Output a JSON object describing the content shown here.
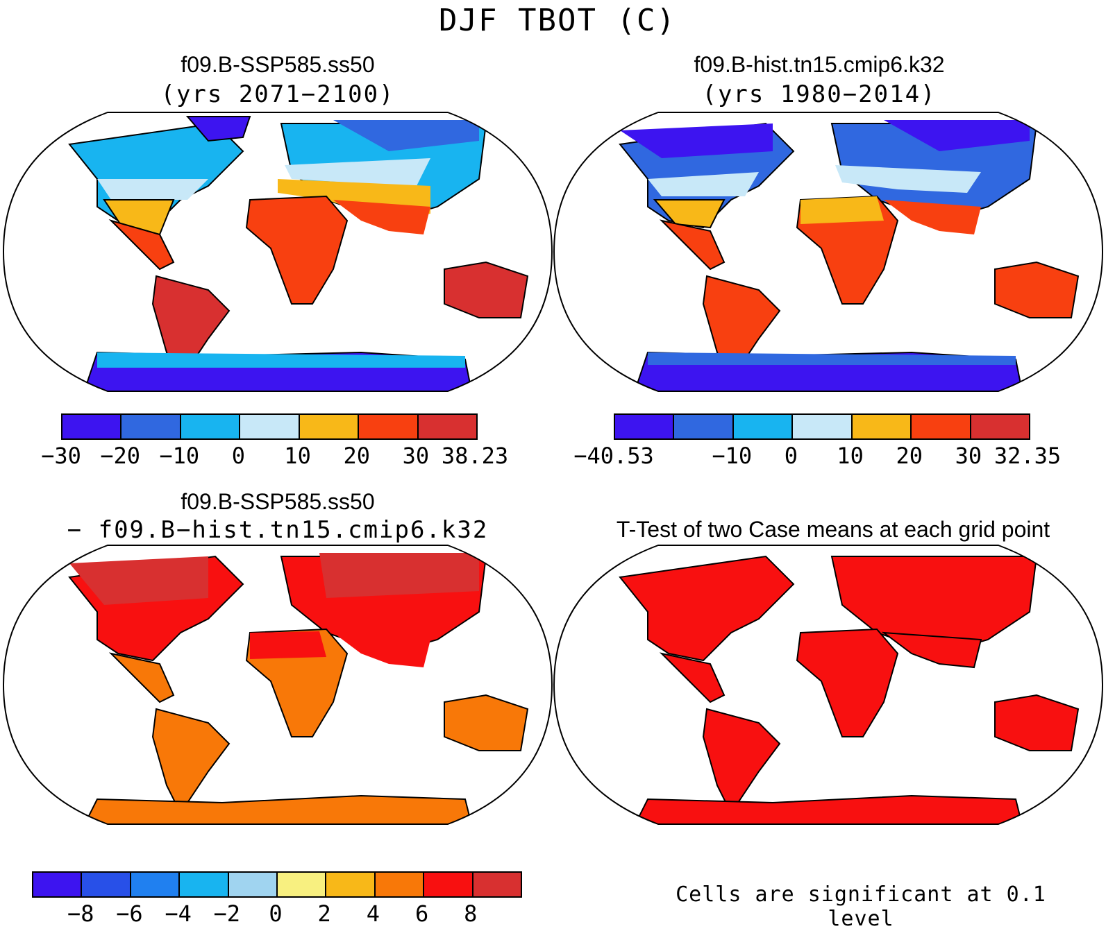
{
  "title": "DJF TBOT (C)",
  "panels": {
    "top_left": {
      "title": "f09.B-SSP585.ss50",
      "subtitle": "(yrs 2071−2100)",
      "colorbar": {
        "colors": [
          "#3d14f0",
          "#3068e0",
          "#18b4f0",
          "#c8e8f8",
          "#f8b818",
          "#f84010",
          "#d83030"
        ],
        "labels": [
          "−30",
          "−20",
          "−10",
          "0",
          "10",
          "20",
          "30",
          "38.23"
        ]
      }
    },
    "top_right": {
      "title": "f09.B-hist.tn15.cmip6.k32",
      "subtitle": "(yrs 1980−2014)",
      "colorbar": {
        "colors": [
          "#3d14f0",
          "#3068e0",
          "#18b4f0",
          "#c8e8f8",
          "#f8b818",
          "#f84010",
          "#d83030"
        ],
        "labels": [
          "−40.53",
          "",
          "−10",
          "0",
          "10",
          "20",
          "30",
          "32.35"
        ]
      }
    },
    "bottom_left": {
      "title": "f09.B-SSP585.ss50",
      "subtitle": "− f09.B−hist.tn15.cmip6.k32",
      "colorbar": {
        "colors": [
          "#3d14f0",
          "#2850e8",
          "#2080f0",
          "#18b4f0",
          "#a0d4f0",
          "#f8f080",
          "#f8b818",
          "#f87808",
          "#f81010",
          "#d83030"
        ],
        "labels": [
          "−8",
          "−6",
          "−4",
          "−2",
          "0",
          "2",
          "4",
          "6",
          "8"
        ]
      }
    },
    "bottom_right": {
      "title": "T-Test of two Case means at each grid point",
      "note": "Cells are significant at 0.1 level"
    }
  }
}
